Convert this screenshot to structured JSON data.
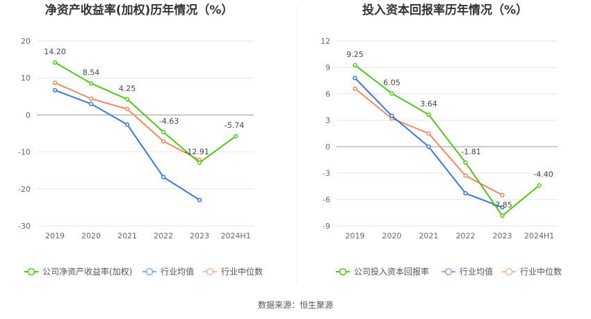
{
  "chart_data": [
    {
      "type": "line",
      "title": "净资产收益率(加权)历年情况（%）",
      "categories": [
        "2019",
        "2020",
        "2021",
        "2022",
        "2023",
        "2024H1"
      ],
      "ylim": [
        -30,
        20
      ],
      "yticks": [
        20,
        10,
        0,
        -10,
        -20,
        -30
      ],
      "legend_position": "bottom",
      "series": [
        {
          "name": "公司净资产收益率(加权)",
          "color": "#52c41a",
          "values": [
            14.2,
            8.54,
            4.25,
            -4.63,
            -12.91,
            -5.74
          ],
          "labels": [
            "14.20",
            "8.54",
            "4.25",
            "-4.63",
            "-12.91",
            "-5.74"
          ]
        },
        {
          "name": "行业均值",
          "color": "#3b73e0",
          "values": [
            6.7,
            3.0,
            -2.6,
            -16.8,
            -23.0,
            null
          ]
        },
        {
          "name": "行业中位数",
          "color": "#f08a5d",
          "values": [
            8.7,
            4.4,
            1.6,
            -7.1,
            -12.2,
            null
          ]
        }
      ]
    },
    {
      "type": "line",
      "title": "投入资本回报率历年情况（%）",
      "categories": [
        "2019",
        "2020",
        "2021",
        "2022",
        "2023",
        "2024H1"
      ],
      "ylim": [
        -9,
        12
      ],
      "yticks": [
        12,
        9,
        6,
        3,
        0,
        -3,
        -6,
        -9
      ],
      "legend_position": "bottom",
      "series": [
        {
          "name": "公司投入资本回报率",
          "color": "#52c41a",
          "values": [
            9.25,
            6.05,
            3.64,
            -1.81,
            -7.85,
            -4.4
          ],
          "labels": [
            "9.25",
            "6.05",
            "3.64",
            "-1.81",
            "-7.85",
            "-4.40"
          ]
        },
        {
          "name": "行业均值",
          "color": "#3b73e0",
          "values": [
            7.8,
            3.5,
            0.0,
            -5.3,
            -6.9,
            null
          ]
        },
        {
          "name": "行业中位数",
          "color": "#f08a5d",
          "values": [
            6.6,
            3.2,
            1.5,
            -3.3,
            -5.5,
            null
          ]
        }
      ]
    }
  ],
  "source": "数据来源：恒生聚源"
}
